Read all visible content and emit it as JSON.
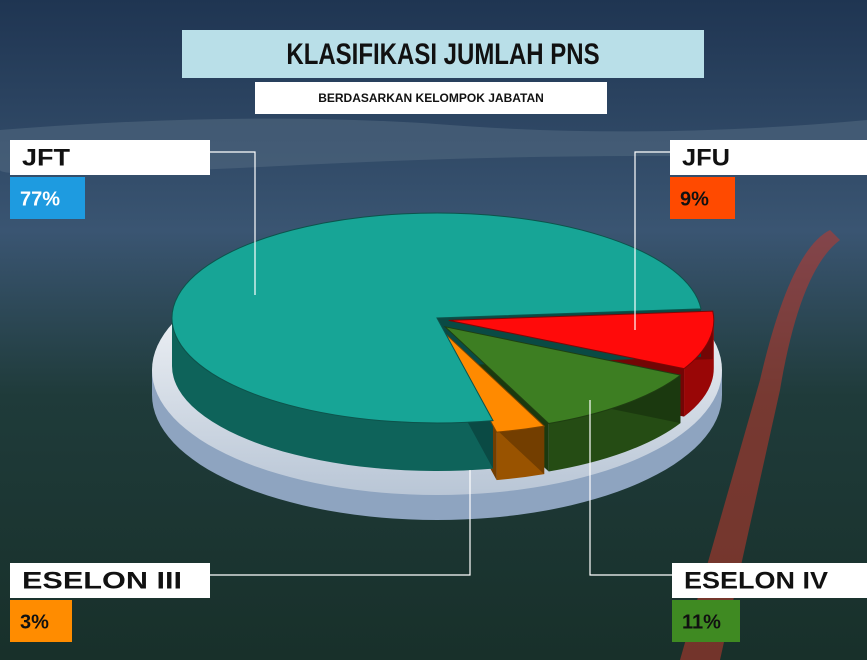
{
  "chart_data": {
    "type": "pie",
    "title": "KLASIFIKASI JUMLAH PNS",
    "subtitle": "BERDASARKAN KELOMPOK JABATAN",
    "categories": [
      "JFT",
      "JFU",
      "ESELON IV",
      "ESELON III"
    ],
    "values": [
      77,
      9,
      11,
      3
    ],
    "value_labels": [
      "77%",
      "9%",
      "11%",
      "3%"
    ],
    "colors": [
      "#17a596",
      "#ff0a0a",
      "#3d7e22",
      "#ff8a00"
    ]
  }
}
